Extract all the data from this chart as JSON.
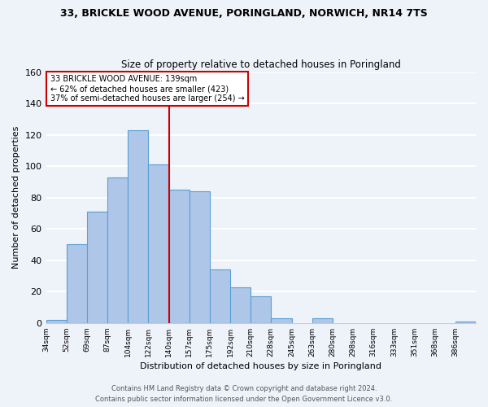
{
  "title_line1": "33, BRICKLE WOOD AVENUE, PORINGLAND, NORWICH, NR14 7TS",
  "title_line2": "Size of property relative to detached houses in Poringland",
  "xlabel": "Distribution of detached houses by size in Poringland",
  "ylabel": "Number of detached properties",
  "bin_labels": [
    "34sqm",
    "52sqm",
    "69sqm",
    "87sqm",
    "104sqm",
    "122sqm",
    "140sqm",
    "157sqm",
    "175sqm",
    "192sqm",
    "210sqm",
    "228sqm",
    "245sqm",
    "263sqm",
    "280sqm",
    "298sqm",
    "316sqm",
    "333sqm",
    "351sqm",
    "368sqm",
    "386sqm"
  ],
  "bar_values": [
    2,
    50,
    71,
    93,
    123,
    101,
    85,
    84,
    34,
    23,
    17,
    3,
    0,
    3,
    0,
    0,
    0,
    0,
    0,
    0,
    1
  ],
  "bar_color": "#aec6e8",
  "bar_edge_color": "#5a9fd4",
  "vline_x_idx": 6,
  "vline_color": "#cc0000",
  "annotation_line1": "33 BRICKLE WOOD AVENUE: 139sqm",
  "annotation_line2": "← 62% of detached houses are smaller (423)",
  "annotation_line3": "37% of semi-detached houses are larger (254) →",
  "annotation_box_color": "#ffffff",
  "annotation_box_edge_color": "#cc0000",
  "ylim": [
    0,
    160
  ],
  "yticks": [
    0,
    20,
    40,
    60,
    80,
    100,
    120,
    140,
    160
  ],
  "footer_line1": "Contains HM Land Registry data © Crown copyright and database right 2024.",
  "footer_line2": "Contains public sector information licensed under the Open Government Licence v3.0.",
  "background_color": "#eef2f9",
  "grid_color": "#ffffff"
}
